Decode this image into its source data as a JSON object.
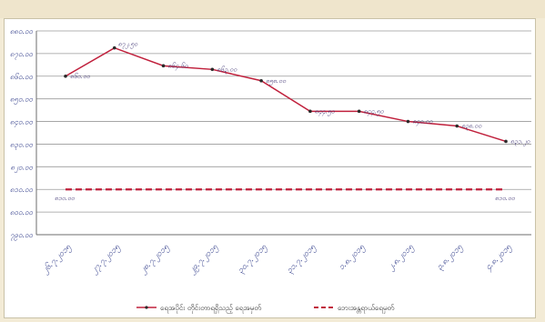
{
  "chart_data": {
    "type": "line",
    "title": "",
    "xlabel": "",
    "ylabel": "",
    "categories": [
      "၂၆.၇.၂၀၁၅",
      "၂၇.၇.၂၀၁၅",
      "၂၈.၇.၂၀၁၅",
      "၂၉.၇.၂၀၁၅",
      "၃၀.၇.၂၀၁၅",
      "၃၁.၇.၂၀၁၅",
      "၁.၈.၂၀၁၅",
      "၂.၈.၂၀၁၅",
      "၃.၈.၂၀၁၅",
      "၄.၈.၂၀၁၅"
    ],
    "y_ticks": [
      "၇၉၀.၀၀",
      "၈၀၀.၀၀",
      "၈၁၀.၀၀",
      "၈၂၀.၀၀",
      "၈၃၀.၀၀",
      "၈၄၀.၀၀",
      "၈၅၀.၀၀",
      "၈၆၀.၀၀",
      "၈၇၀.၀၀",
      "၈၈၀.၀၀"
    ],
    "y_tick_values": [
      790,
      800,
      810,
      820,
      830,
      840,
      850,
      860,
      870,
      880
    ],
    "ylim": [
      790,
      880
    ],
    "grid": true,
    "legend_position": "bottom",
    "series": [
      {
        "name": "ရေအပိုင်း တိုင်းတာရရှိသည့် ရေအမှတ်",
        "color": "#c0203c",
        "style": "solid",
        "values": [
          860.0,
          872.5,
          864.6,
          863.0,
          858.0,
          844.5,
          844.5,
          840.0,
          838.0,
          831.2
        ],
        "labels": [
          "၈၆၀.၀၀",
          "၈၇၂.၅၀",
          "၈၆၄.၆၀",
          "၈၆၃.၀၀",
          "၈၅၈.၀၀",
          "၈၄၄.၅၀",
          "၈၄၄.၅၀",
          "၈၄၀.၀၀",
          "၈၃၈.၀၀",
          "၈၃၁.၂၀"
        ]
      },
      {
        "name": "ဘေးအန္တရာယ်ရေမှတ်",
        "color": "#c0203c",
        "style": "dashed",
        "values": [
          810.0,
          810.0,
          810.0,
          810.0,
          810.0,
          810.0,
          810.0,
          810.0,
          810.0,
          810.0
        ],
        "labels": [
          "၈၁၀.၀၀",
          "",
          "",
          "",
          "",
          "",
          "",
          "",
          "",
          "၈၁၀.၀၀"
        ]
      }
    ]
  }
}
